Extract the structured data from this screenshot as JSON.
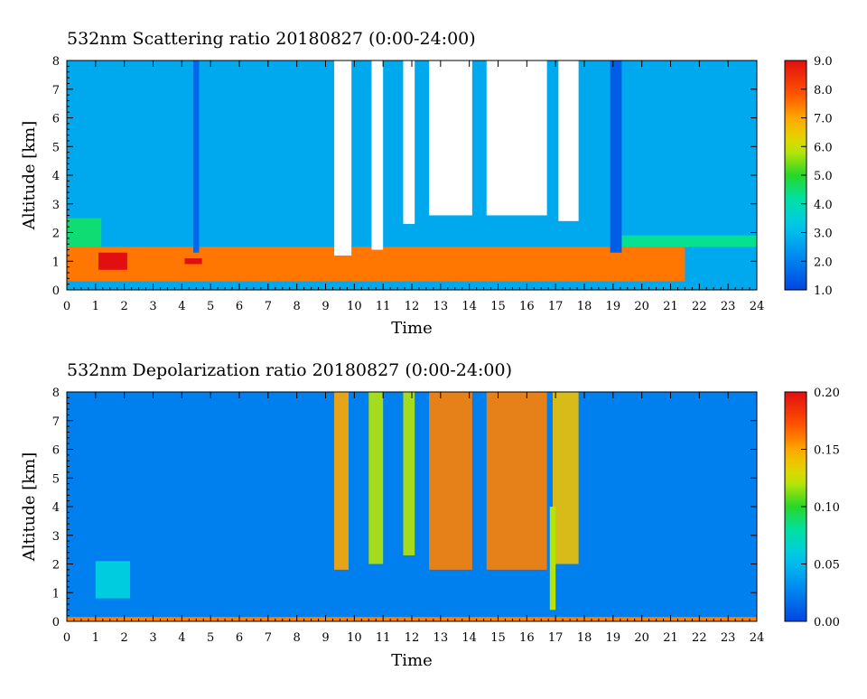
{
  "chart_data": [
    {
      "type": "heatmap",
      "title": "532nm Scattering ratio  20180827 (0:00-24:00)",
      "xlabel": "Time",
      "ylabel": "Altitude [km]",
      "xlim": [
        0,
        24
      ],
      "ylim": [
        0,
        8
      ],
      "x_ticks": [
        "0",
        "1",
        "2",
        "3",
        "4",
        "5",
        "6",
        "7",
        "8",
        "9",
        "10",
        "11",
        "12",
        "13",
        "14",
        "15",
        "16",
        "17",
        "18",
        "19",
        "20",
        "21",
        "22",
        "23",
        "24"
      ],
      "y_ticks": [
        "0",
        "1",
        "2",
        "3",
        "4",
        "5",
        "6",
        "7",
        "8"
      ],
      "colorbar": {
        "min": 1.0,
        "max": 9.0,
        "ticks": [
          "1.0",
          "2.0",
          "3.0",
          "4.0",
          "5.0",
          "6.0",
          "7.0",
          "8.0",
          "9.0"
        ]
      },
      "no_data_color": "#ffffff",
      "features": [
        {
          "kind": "aerosol_layer",
          "x": [
            0,
            21.5
          ],
          "y": [
            0.3,
            1.5
          ],
          "value": 7.5
        },
        {
          "kind": "aerosol_top",
          "x": [
            0,
            1.2
          ],
          "y": [
            1.5,
            2.5
          ],
          "value": 4.5
        },
        {
          "kind": "aerosol_top",
          "x": [
            19.3,
            24
          ],
          "y": [
            1.5,
            1.9
          ],
          "value": 4.3
        },
        {
          "kind": "cloud_saturated",
          "x": [
            1.1,
            2.1
          ],
          "y": [
            0.7,
            1.3
          ],
          "value": 9.0
        },
        {
          "kind": "cloud_saturated",
          "x": [
            4.1,
            4.7
          ],
          "y": [
            0.9,
            1.1
          ],
          "value": 9.0
        },
        {
          "kind": "no_data",
          "x": [
            9.3,
            9.9
          ],
          "y": [
            1.2,
            8.0
          ]
        },
        {
          "kind": "no_data",
          "x": [
            10.6,
            11.0
          ],
          "y": [
            1.4,
            8.0
          ]
        },
        {
          "kind": "no_data",
          "x": [
            11.7,
            12.1
          ],
          "y": [
            2.3,
            8.0
          ]
        },
        {
          "kind": "no_data",
          "x": [
            12.6,
            14.1
          ],
          "y": [
            2.6,
            8.0
          ]
        },
        {
          "kind": "no_data",
          "x": [
            14.6,
            16.7
          ],
          "y": [
            2.6,
            8.0
          ]
        },
        {
          "kind": "no_data",
          "x": [
            17.1,
            17.8
          ],
          "y": [
            2.4,
            8.0
          ]
        },
        {
          "kind": "low_value_band",
          "x": [
            4.4,
            4.6
          ],
          "y": [
            1.3,
            8.0
          ],
          "value": 1.6
        },
        {
          "kind": "low_value_band",
          "x": [
            18.9,
            19.3
          ],
          "y": [
            1.3,
            8.0
          ],
          "value": 1.4
        }
      ]
    },
    {
      "type": "heatmap",
      "title": "532nm Depolarization ratio  20180827 (0:00-24:00)",
      "xlabel": "Time",
      "ylabel": "Altitude [km]",
      "xlim": [
        0,
        24
      ],
      "ylim": [
        0,
        8
      ],
      "x_ticks": [
        "0",
        "1",
        "2",
        "3",
        "4",
        "5",
        "6",
        "7",
        "8",
        "9",
        "10",
        "11",
        "12",
        "13",
        "14",
        "15",
        "16",
        "17",
        "18",
        "19",
        "20",
        "21",
        "22",
        "23",
        "24"
      ],
      "y_ticks": [
        "0",
        "1",
        "2",
        "3",
        "4",
        "5",
        "6",
        "7",
        "8"
      ],
      "colorbar": {
        "min": 0.0,
        "max": 0.2,
        "ticks": [
          "0.00",
          "0.05",
          "0.10",
          "0.15",
          "0.20"
        ]
      },
      "no_data_color": "#ffffff",
      "features": [
        {
          "kind": "background",
          "x": [
            0,
            24
          ],
          "y": [
            0,
            8
          ],
          "value": 0.025
        },
        {
          "kind": "ground_layer",
          "x": [
            0,
            24
          ],
          "y": [
            0,
            0.15
          ],
          "value": 0.16
        },
        {
          "kind": "dust_patch",
          "x": [
            1.0,
            2.2
          ],
          "y": [
            0.8,
            2.1
          ],
          "value": 0.06
        },
        {
          "kind": "noisy_high_depol",
          "x": [
            9.3,
            9.8
          ],
          "y": [
            1.8,
            8.0
          ],
          "value": 0.15
        },
        {
          "kind": "noisy_high_depol",
          "x": [
            10.5,
            11.0
          ],
          "y": [
            2.0,
            8.0
          ],
          "value": 0.12
        },
        {
          "kind": "noisy_high_depol",
          "x": [
            11.7,
            12.1
          ],
          "y": [
            2.3,
            8.0
          ],
          "value": 0.12
        },
        {
          "kind": "noisy_high_depol",
          "x": [
            12.6,
            14.1
          ],
          "y": [
            1.8,
            8.0
          ],
          "value": 0.16
        },
        {
          "kind": "noisy_high_depol",
          "x": [
            14.6,
            16.7
          ],
          "y": [
            1.8,
            8.0
          ],
          "value": 0.16
        },
        {
          "kind": "noisy_high_depol",
          "x": [
            16.9,
            17.8
          ],
          "y": [
            2.0,
            8.0
          ],
          "value": 0.14
        },
        {
          "kind": "ice_column",
          "x": [
            16.8,
            17.0
          ],
          "y": [
            0.4,
            4.0
          ],
          "value": 0.12
        }
      ]
    }
  ]
}
